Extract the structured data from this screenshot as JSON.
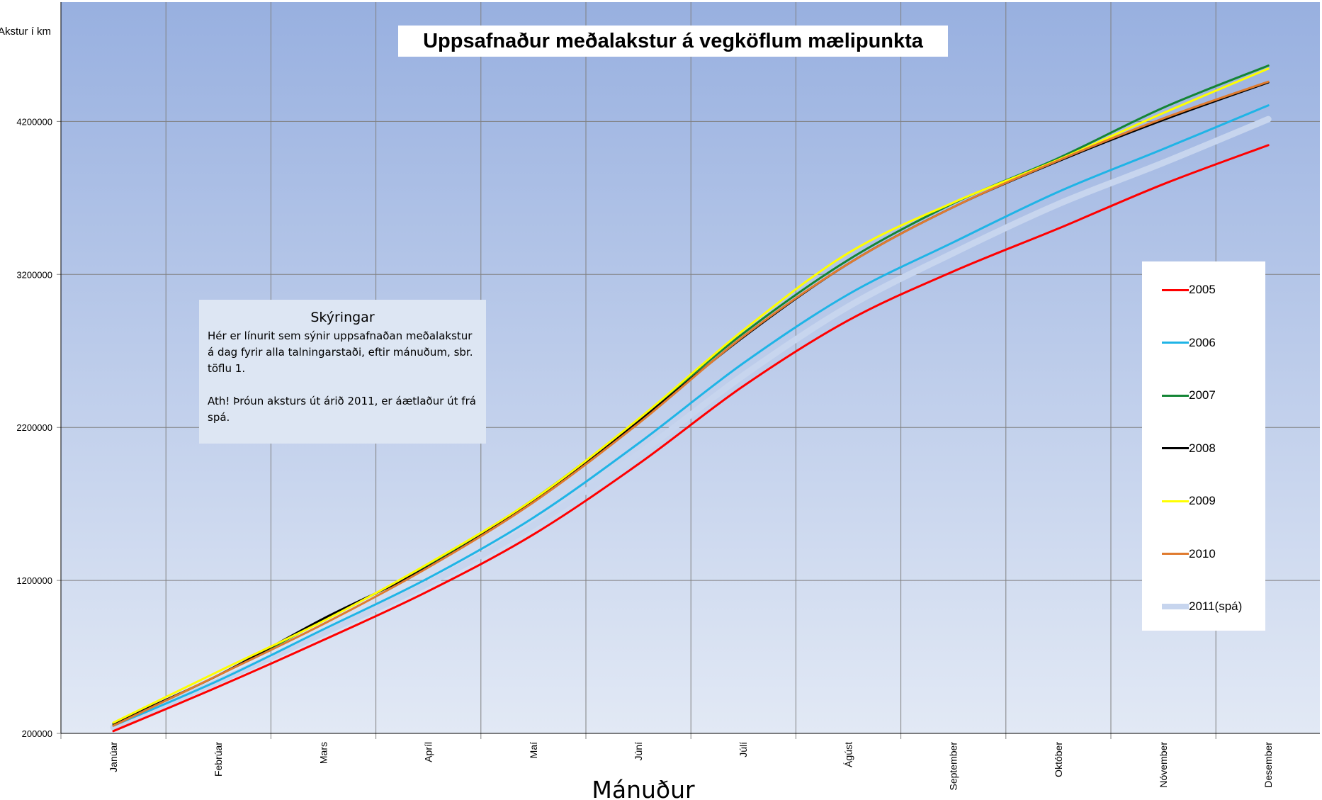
{
  "chart_data": {
    "type": "line",
    "title": "Uppsafnaður meðalakstur á vegköflum mælipunkta",
    "ylabel": "Akstur í km",
    "xlabel": "Mánuður",
    "categories": [
      "Janúar",
      "Febrúar",
      "Mars",
      "Apríl",
      "Maí",
      "Júní",
      "Júlí",
      "Ágúst",
      "September",
      "Október",
      "Nóvember",
      "Desember"
    ],
    "y_ticks": [
      200000,
      1200000,
      2200000,
      3200000,
      4200000
    ],
    "ylim": [
      200000,
      4980000
    ],
    "grid": true,
    "legend_position": "right",
    "series": [
      {
        "name": "2005",
        "color": "#ff0000",
        "values": [
          215000,
          505000,
          810000,
          1130000,
          1500000,
          1960000,
          2470000,
          2900000,
          3220000,
          3500000,
          3790000,
          4045000
        ]
      },
      {
        "name": "2006",
        "color": "#1fb4e6",
        "values": [
          250000,
          545000,
          880000,
          1215000,
          1610000,
          2095000,
          2620000,
          3070000,
          3410000,
          3740000,
          4020000,
          4305000
        ]
      },
      {
        "name": "2007",
        "color": "#138535",
        "values": [
          255000,
          580000,
          940000,
          1300000,
          1730000,
          2250000,
          2815000,
          3295000,
          3665000,
          3960000,
          4290000,
          4565000
        ]
      },
      {
        "name": "2008",
        "color": "#000000",
        "values": [
          265000,
          580000,
          950000,
          1290000,
          1720000,
          2240000,
          2790000,
          3270000,
          3640000,
          3940000,
          4210000,
          4455000
        ]
      },
      {
        "name": "2009",
        "color": "#ffff00",
        "values": [
          270000,
          605000,
          935000,
          1310000,
          1730000,
          2255000,
          2835000,
          3340000,
          3670000,
          3950000,
          4255000,
          4545000
        ]
      },
      {
        "name": "2010",
        "color": "#e07b2f",
        "values": [
          250000,
          580000,
          915000,
          1285000,
          1710000,
          2225000,
          2795000,
          3270000,
          3640000,
          3945000,
          4220000,
          4460000
        ]
      },
      {
        "name": "2011(spá)",
        "color": "#c7d5ee",
        "values": [
          240000,
          540000,
          855000,
          1180000,
          1560000,
          2025000,
          2540000,
          2990000,
          3340000,
          3660000,
          3930000,
          4215000
        ]
      }
    ]
  },
  "note": {
    "heading": "Skýringar",
    "paragraph1": "Hér er línurit sem sýnir uppsafnaðan meðalakstur á dag fyrir alla talningarstaði, eftir mánuðum, sbr. töflu 1.",
    "paragraph2": "Ath! Þróun aksturs út árið 2011, er áætlaður út frá spá."
  }
}
